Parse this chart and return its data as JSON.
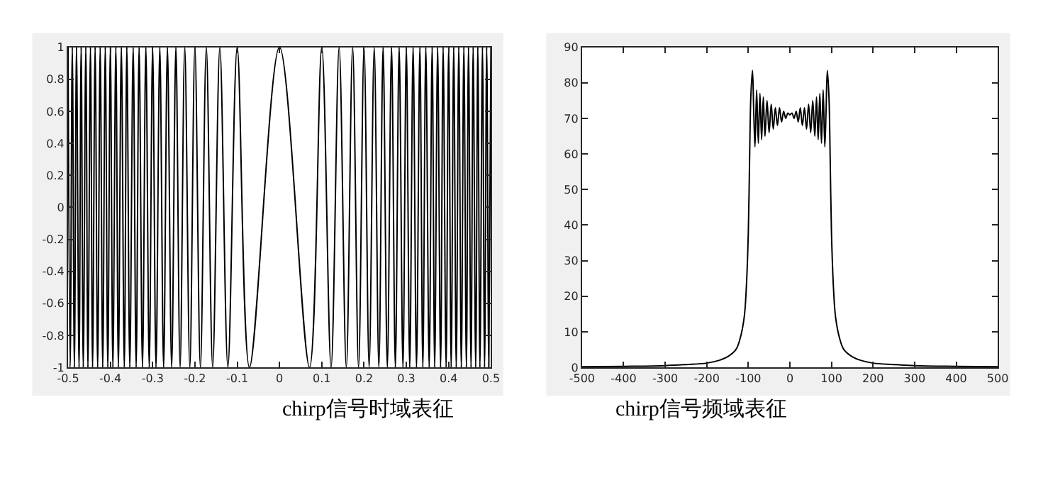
{
  "chart_data": [
    {
      "type": "line",
      "xlabel": "chirp信号时域表征",
      "xlim": [
        -0.5,
        0.5
      ],
      "xticks": [
        -0.5,
        -0.4,
        -0.3,
        -0.2,
        -0.1,
        0,
        0.1,
        0.2,
        0.3,
        0.4,
        0.5
      ],
      "ylim": [
        -1,
        1
      ],
      "yticks": [
        -1,
        -0.8,
        -0.6,
        -0.4,
        -0.2,
        0,
        0.2,
        0.4,
        0.6,
        0.8,
        1
      ],
      "grid": false,
      "series": [
        {
          "color": "#000000",
          "x": [
            -0.5,
            -0.495,
            -0.49,
            -0.485,
            -0.48,
            -0.474,
            -0.469,
            -0.464,
            -0.458,
            -0.453,
            -0.447,
            -0.442,
            -0.436,
            -0.43,
            -0.424,
            -0.418,
            -0.412,
            -0.406,
            -0.4,
            -0.394,
            -0.387,
            -0.381,
            -0.374,
            -0.367,
            -0.361,
            -0.354,
            -0.346,
            -0.339,
            -0.332,
            -0.324,
            -0.316,
            -0.308,
            -0.3,
            -0.292,
            -0.283,
            -0.274,
            -0.265,
            -0.255,
            -0.245,
            -0.235,
            -0.224,
            -0.212,
            -0.2,
            -0.187,
            -0.173,
            -0.158,
            -0.141,
            -0.122,
            -0.1,
            -0.071,
            0,
            0.071,
            0.1,
            0.122,
            0.141,
            0.158,
            0.173,
            0.187,
            0.2,
            0.212,
            0.224,
            0.235,
            0.245,
            0.255,
            0.265,
            0.274,
            0.283,
            0.292,
            0.3,
            0.308,
            0.316,
            0.324,
            0.332,
            0.339,
            0.346,
            0.354,
            0.361,
            0.367,
            0.374,
            0.381,
            0.387,
            0.394,
            0.4,
            0.406,
            0.412,
            0.418,
            0.424,
            0.43,
            0.436,
            0.442,
            0.447,
            0.453,
            0.458,
            0.464,
            0.469,
            0.474,
            0.48,
            0.485,
            0.49,
            0.495,
            0.5
          ],
          "values": [
            1,
            -1,
            1,
            -1,
            1,
            -1,
            1,
            -1,
            1,
            -1,
            1,
            -1,
            1,
            -1,
            1,
            -1,
            1,
            -1,
            1,
            -1,
            1,
            -1,
            1,
            -1,
            1,
            -1,
            1,
            -1,
            1,
            -1,
            1,
            -1,
            1,
            -1,
            1,
            -1,
            1,
            -1,
            1,
            -1,
            1,
            -1,
            1,
            -1,
            1,
            -1,
            1,
            -1,
            1,
            -1,
            1,
            -1,
            1,
            -1,
            1,
            -1,
            1,
            -1,
            1,
            -1,
            1,
            -1,
            1,
            -1,
            1,
            -1,
            1,
            -1,
            1,
            -1,
            1,
            -1,
            1,
            -1,
            1,
            -1,
            1,
            -1,
            1,
            -1,
            1,
            -1,
            1,
            -1,
            1,
            -1,
            1,
            -1,
            1,
            -1,
            1,
            -1,
            1,
            -1,
            1,
            -1,
            1,
            -1,
            1,
            -1,
            1
          ]
        }
      ]
    },
    {
      "type": "line",
      "xlabel": "chirp信号频域表征",
      "xlim": [
        -500,
        500
      ],
      "xticks": [
        -500,
        -400,
        -300,
        -200,
        -100,
        0,
        100,
        200,
        300,
        400,
        500
      ],
      "ylim": [
        0,
        90
      ],
      "yticks": [
        0,
        10,
        20,
        30,
        40,
        50,
        60,
        70,
        80,
        90
      ],
      "grid": false,
      "series": [
        {
          "color": "#000000",
          "x": [
            -500,
            -400,
            -300,
            -250,
            -200,
            -170,
            -150,
            -130,
            -120,
            -110,
            -105,
            -100,
            -97,
            -94,
            -90,
            -87,
            -84,
            -80,
            -76,
            -72,
            -68,
            -64,
            -60,
            -55,
            -50,
            -45,
            -40,
            -35,
            -30,
            -25,
            -20,
            -15,
            -10,
            -5,
            0,
            5,
            10,
            15,
            20,
            25,
            30,
            35,
            40,
            45,
            50,
            55,
            60,
            64,
            68,
            72,
            76,
            80,
            84,
            87,
            90,
            94,
            97,
            100,
            105,
            110,
            120,
            130,
            150,
            170,
            200,
            250,
            300,
            400,
            500
          ],
          "values": [
            0.2,
            0.3,
            0.5,
            0.8,
            1.2,
            2,
            3,
            5,
            8,
            14,
            22,
            38,
            58,
            76,
            83.5,
            72,
            62,
            78,
            63,
            77,
            64,
            76,
            65,
            75,
            66,
            74,
            67,
            73,
            68,
            73,
            69,
            72,
            70,
            71.5,
            71,
            71.5,
            70,
            72,
            69,
            73,
            68,
            73,
            67,
            74,
            66,
            75,
            65,
            76,
            64,
            77,
            63,
            78,
            62,
            72,
            83.5,
            76,
            58,
            38,
            22,
            14,
            8,
            5,
            3,
            2,
            1.2,
            0.8,
            0.5,
            0.3,
            0.2
          ]
        }
      ]
    }
  ]
}
